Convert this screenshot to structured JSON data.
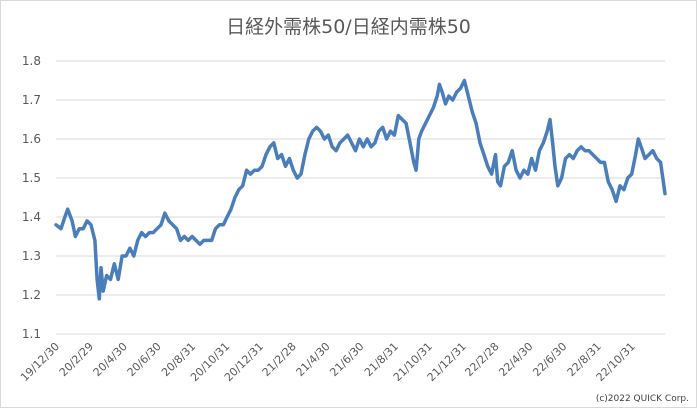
{
  "chart_data": {
    "type": "line",
    "title": "日経外需株50/日経内需株50",
    "xlabel": "",
    "ylabel": "",
    "ylim": [
      1.1,
      1.8
    ],
    "y_ticks": [
      "1.8",
      "1.7",
      "1.6",
      "1.5",
      "1.4",
      "1.3",
      "1.2",
      "1.1"
    ],
    "grid": "horizontal",
    "legend": "none",
    "line_color": "#4a7ebb",
    "x_range": [
      "2019-12-30",
      "2022-12-30"
    ],
    "x_tick_labels": [
      "19/12/30",
      "20/2/29",
      "20/4/30",
      "20/6/30",
      "20/8/31",
      "20/10/31",
      "20/12/31",
      "21/2/28",
      "21/4/30",
      "21/6/30",
      "21/8/31",
      "21/10/31",
      "21/12/31",
      "22/2/28",
      "22/4/30",
      "22/6/30",
      "22/8/31",
      "22/10/31"
    ],
    "x_tick_dates": [
      "2019-12-30",
      "2020-02-29",
      "2020-04-30",
      "2020-06-30",
      "2020-08-31",
      "2020-10-31",
      "2020-12-31",
      "2021-02-28",
      "2021-04-30",
      "2021-06-30",
      "2021-08-31",
      "2021-10-31",
      "2021-12-31",
      "2022-02-28",
      "2022-04-30",
      "2022-06-30",
      "2022-08-31",
      "2022-10-31"
    ],
    "series": [
      {
        "points": [
          [
            "2019-12-30",
            1.38
          ],
          [
            "2020-01-08",
            1.37
          ],
          [
            "2020-01-15",
            1.4
          ],
          [
            "2020-01-20",
            1.42
          ],
          [
            "2020-01-28",
            1.39
          ],
          [
            "2020-02-03",
            1.35
          ],
          [
            "2020-02-10",
            1.37
          ],
          [
            "2020-02-17",
            1.37
          ],
          [
            "2020-02-24",
            1.39
          ],
          [
            "2020-03-02",
            1.38
          ],
          [
            "2020-03-09",
            1.34
          ],
          [
            "2020-03-13",
            1.24
          ],
          [
            "2020-03-17",
            1.19
          ],
          [
            "2020-03-20",
            1.27
          ],
          [
            "2020-03-24",
            1.21
          ],
          [
            "2020-03-30",
            1.25
          ],
          [
            "2020-04-06",
            1.24
          ],
          [
            "2020-04-13",
            1.28
          ],
          [
            "2020-04-20",
            1.24
          ],
          [
            "2020-04-27",
            1.3
          ],
          [
            "2020-05-04",
            1.3
          ],
          [
            "2020-05-11",
            1.32
          ],
          [
            "2020-05-18",
            1.3
          ],
          [
            "2020-05-25",
            1.34
          ],
          [
            "2020-06-01",
            1.36
          ],
          [
            "2020-06-08",
            1.35
          ],
          [
            "2020-06-15",
            1.36
          ],
          [
            "2020-06-22",
            1.36
          ],
          [
            "2020-06-29",
            1.37
          ],
          [
            "2020-07-06",
            1.38
          ],
          [
            "2020-07-13",
            1.41
          ],
          [
            "2020-07-20",
            1.39
          ],
          [
            "2020-07-27",
            1.38
          ],
          [
            "2020-08-03",
            1.37
          ],
          [
            "2020-08-10",
            1.34
          ],
          [
            "2020-08-17",
            1.35
          ],
          [
            "2020-08-24",
            1.34
          ],
          [
            "2020-08-31",
            1.35
          ],
          [
            "2020-09-07",
            1.34
          ],
          [
            "2020-09-14",
            1.33
          ],
          [
            "2020-09-21",
            1.34
          ],
          [
            "2020-09-28",
            1.34
          ],
          [
            "2020-10-05",
            1.34
          ],
          [
            "2020-10-12",
            1.37
          ],
          [
            "2020-10-19",
            1.38
          ],
          [
            "2020-10-26",
            1.38
          ],
          [
            "2020-11-02",
            1.4
          ],
          [
            "2020-11-09",
            1.42
          ],
          [
            "2020-11-16",
            1.45
          ],
          [
            "2020-11-23",
            1.47
          ],
          [
            "2020-11-30",
            1.48
          ],
          [
            "2020-12-07",
            1.52
          ],
          [
            "2020-12-14",
            1.51
          ],
          [
            "2020-12-21",
            1.52
          ],
          [
            "2020-12-28",
            1.52
          ],
          [
            "2021-01-04",
            1.53
          ],
          [
            "2021-01-11",
            1.56
          ],
          [
            "2021-01-18",
            1.58
          ],
          [
            "2021-01-25",
            1.59
          ],
          [
            "2021-02-01",
            1.55
          ],
          [
            "2021-02-08",
            1.56
          ],
          [
            "2021-02-15",
            1.53
          ],
          [
            "2021-02-22",
            1.55
          ],
          [
            "2021-03-01",
            1.52
          ],
          [
            "2021-03-08",
            1.5
          ],
          [
            "2021-03-15",
            1.51
          ],
          [
            "2021-03-22",
            1.56
          ],
          [
            "2021-03-29",
            1.6
          ],
          [
            "2021-04-05",
            1.62
          ],
          [
            "2021-04-12",
            1.63
          ],
          [
            "2021-04-19",
            1.62
          ],
          [
            "2021-04-26",
            1.6
          ],
          [
            "2021-05-03",
            1.61
          ],
          [
            "2021-05-10",
            1.58
          ],
          [
            "2021-05-17",
            1.57
          ],
          [
            "2021-05-24",
            1.59
          ],
          [
            "2021-05-31",
            1.6
          ],
          [
            "2021-06-07",
            1.61
          ],
          [
            "2021-06-14",
            1.59
          ],
          [
            "2021-06-21",
            1.57
          ],
          [
            "2021-06-28",
            1.6
          ],
          [
            "2021-07-05",
            1.58
          ],
          [
            "2021-07-12",
            1.6
          ],
          [
            "2021-07-19",
            1.58
          ],
          [
            "2021-07-26",
            1.59
          ],
          [
            "2021-08-02",
            1.62
          ],
          [
            "2021-08-09",
            1.63
          ],
          [
            "2021-08-16",
            1.6
          ],
          [
            "2021-08-23",
            1.62
          ],
          [
            "2021-08-30",
            1.61
          ],
          [
            "2021-09-06",
            1.66
          ],
          [
            "2021-09-13",
            1.65
          ],
          [
            "2021-09-20",
            1.64
          ],
          [
            "2021-09-27",
            1.59
          ],
          [
            "2021-10-04",
            1.54
          ],
          [
            "2021-10-08",
            1.52
          ],
          [
            "2021-10-13",
            1.6
          ],
          [
            "2021-10-18",
            1.62
          ],
          [
            "2021-10-25",
            1.64
          ],
          [
            "2021-11-01",
            1.66
          ],
          [
            "2021-11-08",
            1.68
          ],
          [
            "2021-11-15",
            1.71
          ],
          [
            "2021-11-19",
            1.74
          ],
          [
            "2021-11-24",
            1.72
          ],
          [
            "2021-11-30",
            1.69
          ],
          [
            "2021-12-06",
            1.71
          ],
          [
            "2021-12-13",
            1.7
          ],
          [
            "2021-12-20",
            1.72
          ],
          [
            "2021-12-27",
            1.73
          ],
          [
            "2022-01-03",
            1.75
          ],
          [
            "2022-01-10",
            1.71
          ],
          [
            "2022-01-17",
            1.67
          ],
          [
            "2022-01-24",
            1.64
          ],
          [
            "2022-01-31",
            1.59
          ],
          [
            "2022-02-07",
            1.56
          ],
          [
            "2022-02-14",
            1.53
          ],
          [
            "2022-02-21",
            1.51
          ],
          [
            "2022-02-28",
            1.56
          ],
          [
            "2022-03-04",
            1.49
          ],
          [
            "2022-03-09",
            1.48
          ],
          [
            "2022-03-16",
            1.53
          ],
          [
            "2022-03-23",
            1.54
          ],
          [
            "2022-03-30",
            1.57
          ],
          [
            "2022-04-06",
            1.52
          ],
          [
            "2022-04-13",
            1.5
          ],
          [
            "2022-04-20",
            1.52
          ],
          [
            "2022-04-27",
            1.51
          ],
          [
            "2022-05-04",
            1.55
          ],
          [
            "2022-05-11",
            1.52
          ],
          [
            "2022-05-18",
            1.57
          ],
          [
            "2022-05-25",
            1.59
          ],
          [
            "2022-06-01",
            1.62
          ],
          [
            "2022-06-06",
            1.65
          ],
          [
            "2022-06-10",
            1.6
          ],
          [
            "2022-06-15",
            1.53
          ],
          [
            "2022-06-20",
            1.48
          ],
          [
            "2022-06-27",
            1.5
          ],
          [
            "2022-07-04",
            1.55
          ],
          [
            "2022-07-11",
            1.56
          ],
          [
            "2022-07-18",
            1.55
          ],
          [
            "2022-07-25",
            1.57
          ],
          [
            "2022-08-01",
            1.58
          ],
          [
            "2022-08-08",
            1.57
          ],
          [
            "2022-08-15",
            1.57
          ],
          [
            "2022-08-22",
            1.56
          ],
          [
            "2022-08-29",
            1.55
          ],
          [
            "2022-09-05",
            1.54
          ],
          [
            "2022-09-12",
            1.54
          ],
          [
            "2022-09-19",
            1.49
          ],
          [
            "2022-09-26",
            1.47
          ],
          [
            "2022-10-03",
            1.44
          ],
          [
            "2022-10-10",
            1.48
          ],
          [
            "2022-10-17",
            1.47
          ],
          [
            "2022-10-24",
            1.5
          ],
          [
            "2022-10-31",
            1.51
          ],
          [
            "2022-11-07",
            1.56
          ],
          [
            "2022-11-12",
            1.6
          ],
          [
            "2022-11-17",
            1.58
          ],
          [
            "2022-11-24",
            1.55
          ],
          [
            "2022-12-01",
            1.56
          ],
          [
            "2022-12-08",
            1.57
          ],
          [
            "2022-12-15",
            1.55
          ],
          [
            "2022-12-22",
            1.54
          ],
          [
            "2022-12-30",
            1.46
          ]
        ]
      }
    ]
  },
  "footer": {
    "credit": "(c)2022 QUICK Corp."
  }
}
